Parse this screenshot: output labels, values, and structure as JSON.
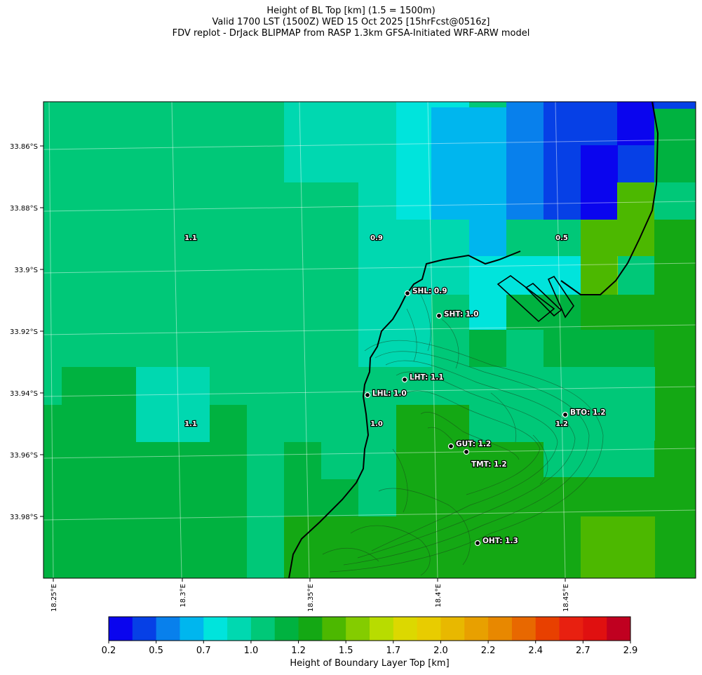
{
  "title": {
    "line1": "Height of BL Top [km] (1.5 = 1500m)",
    "line2": "Valid 1700 LST (1500Z) WED 15 Oct 2025 [15hrFcst@0516z]",
    "line3": "FDV replot - DrJack BLIPMAP from RASP 1.3km GFSA-Initiated WRF-ARW model"
  },
  "map": {
    "lat_ticks": [
      "33.86°S",
      "33.88°S",
      "33.9°S",
      "33.92°S",
      "33.94°S",
      "33.96°S",
      "33.98°S"
    ],
    "lon_ticks": [
      "18.25°E",
      "18.3°E",
      "18.35°E",
      "18.4°E",
      "18.45°E"
    ],
    "grid_labels": [
      "1.1",
      "0.9",
      "0.5",
      "1.1",
      "1.0",
      "1.2"
    ],
    "stations": [
      "SHL: 0.9",
      "SHT: 1.0",
      "LHT: 1.1",
      "LHL: 1.0",
      "BTO: 1.2",
      "GUT: 1.2",
      "TMT: 1.2",
      "OHT: 1.3"
    ]
  },
  "colorbar": {
    "label": "Height of Boundary Layer Top [km]",
    "ticks": [
      "0.2",
      "0.5",
      "0.7",
      "1.0",
      "1.2",
      "1.5",
      "1.7",
      "2.0",
      "2.2",
      "2.4",
      "2.7",
      "2.9"
    ],
    "colors": [
      "#0a05ee",
      "#0640e6",
      "#0880ec",
      "#00b6ee",
      "#00e4dc",
      "#00d8b0",
      "#00c878",
      "#00b240",
      "#14a814",
      "#4cb800",
      "#84cc00",
      "#b8dc00",
      "#dcd800",
      "#e8cc00",
      "#e8b800",
      "#e8a000",
      "#e88800",
      "#e86800",
      "#e84000",
      "#e82010",
      "#e01010",
      "#c00020"
    ]
  }
}
